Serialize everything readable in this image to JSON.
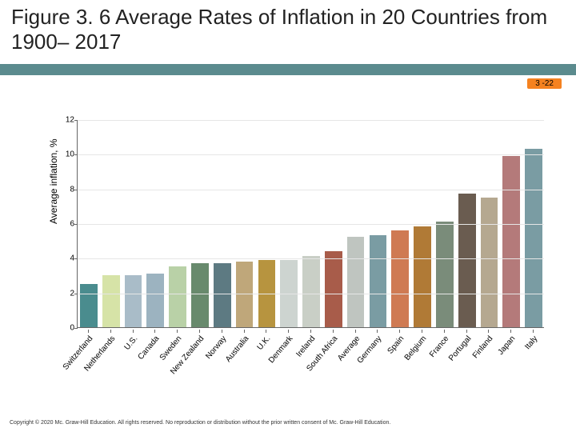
{
  "slide": {
    "title": "Figure 3. 6 Average Rates of Inflation in 20 Countries from 1900– 2017",
    "page_badge": "3 -22",
    "copyright": "Copyright © 2020 Mc. Graw-Hill Education. All rights reserved. No reproduction or distribution without the prior written consent of Mc. Graw-Hill Education.",
    "title_underline_color": "#5b8b8e",
    "badge_bg": "#f58220"
  },
  "chart": {
    "type": "bar",
    "ylabel": "Average inflation, %",
    "ylim": [
      0,
      12
    ],
    "ytick_step": 2,
    "yticks": [
      0,
      2,
      4,
      6,
      8,
      10,
      12
    ],
    "grid_color": "#e6e6e6",
    "axis_color": "#666666",
    "label_fontsize": 12,
    "tick_fontsize": 10,
    "xlabel_fontsize": 10,
    "xlabel_rotation_deg": -50,
    "bar_width_ratio": 0.78,
    "categories": [
      "Switzerland",
      "Netherlands",
      "U.S.",
      "Canada",
      "Sweden",
      "New Zealand",
      "Norway",
      "Australia",
      "U.K.",
      "Denmark",
      "Ireland",
      "South Africa",
      "Average",
      "Germany",
      "Spain",
      "Belgium",
      "France",
      "Portugal",
      "Finland",
      "Japan",
      "Italy"
    ],
    "values": [
      2.5,
      3.0,
      3.0,
      3.1,
      3.5,
      3.7,
      3.7,
      3.8,
      3.9,
      3.9,
      4.1,
      4.4,
      5.2,
      5.3,
      5.6,
      5.8,
      6.1,
      7.7,
      7.5,
      9.9,
      10.3
    ],
    "bar_colors": [
      "#4a8c8e",
      "#d6e3a7",
      "#a9bcc8",
      "#9cb3c0",
      "#b9d1a7",
      "#688a6d",
      "#5d7a82",
      "#bfa77a",
      "#b7943f",
      "#cdd4d0",
      "#c9cfc6",
      "#a85c4a",
      "#bfc5c0",
      "#7a9ca3",
      "#cf7a53",
      "#b07a36",
      "#7a8c7a",
      "#6a5c50",
      "#b5a890",
      "#b47a7a",
      "#7a9ca3"
    ]
  }
}
